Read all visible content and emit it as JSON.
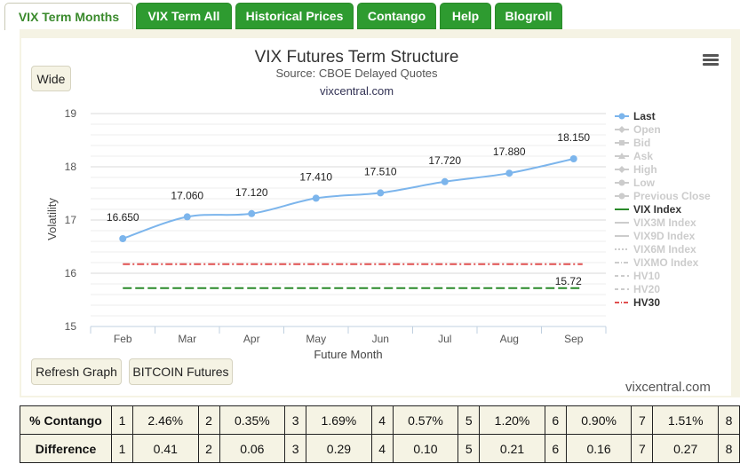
{
  "tabs": [
    {
      "label": "VIX Term Months",
      "active": true
    },
    {
      "label": "VIX Term All",
      "active": false
    },
    {
      "label": "Historical Prices",
      "active": false
    },
    {
      "label": "Contango",
      "active": false
    },
    {
      "label": "Help",
      "active": false
    },
    {
      "label": "Blogroll",
      "active": false
    }
  ],
  "buttons": {
    "wide": "Wide",
    "refresh": "Refresh Graph",
    "bitcoin": "BITCOIN Futures"
  },
  "chart_header": {
    "title": "VIX Futures Term Structure",
    "subtitle": "Source: CBOE Delayed Quotes",
    "site": "vixcentral.com"
  },
  "footer_brand": "vixcentral.com",
  "chart_data": {
    "type": "line",
    "categories": [
      "Feb",
      "Mar",
      "Apr",
      "May",
      "Jun",
      "Jul",
      "Aug",
      "Sep"
    ],
    "xlabel": "Future Month",
    "ylabel": "Volatility",
    "ylim": [
      15,
      19
    ],
    "yticks": [
      15,
      16,
      17,
      18,
      19
    ],
    "grid": true,
    "legend_position": "right",
    "series": [
      {
        "name": "Last",
        "values": [
          16.65,
          17.06,
          17.12,
          17.41,
          17.51,
          17.72,
          17.88,
          18.15
        ],
        "labels": [
          "16.650",
          "17.060",
          "17.120",
          "17.410",
          "17.510",
          "17.720",
          "17.880",
          "18.150"
        ],
        "color": "#7cb5ec"
      },
      {
        "name": "VIX Index",
        "value": 15.72,
        "label": "15.72",
        "color": "#2a8a2a"
      },
      {
        "name": "HV30",
        "value": 16.17,
        "color": "#e05050"
      }
    ],
    "legend": [
      {
        "name": "Last",
        "active": true,
        "style": "dot-line"
      },
      {
        "name": "Open",
        "active": false,
        "style": "diamond"
      },
      {
        "name": "Bid",
        "active": false,
        "style": "square"
      },
      {
        "name": "Ask",
        "active": false,
        "style": "triangle"
      },
      {
        "name": "High",
        "active": false,
        "style": "diamond"
      },
      {
        "name": "Low",
        "active": false,
        "style": "dot"
      },
      {
        "name": "Previous Close",
        "active": false,
        "style": "dot"
      },
      {
        "name": "VIX Index",
        "active": true,
        "style": "solid"
      },
      {
        "name": "VIX3M Index",
        "active": false,
        "style": "solid"
      },
      {
        "name": "VIX9D Index",
        "active": false,
        "style": "solid"
      },
      {
        "name": "VIX6M Index",
        "active": false,
        "style": "dotted"
      },
      {
        "name": "VIXMO Index",
        "active": false,
        "style": "dashdot"
      },
      {
        "name": "HV10",
        "active": false,
        "style": "dashed"
      },
      {
        "name": "HV20",
        "active": false,
        "style": "dashed"
      },
      {
        "name": "HV30",
        "active": true,
        "style": "dashdot"
      }
    ]
  },
  "table": {
    "rows": [
      {
        "label": "% Contango",
        "cells": [
          "1",
          "2.46%",
          "2",
          "0.35%",
          "3",
          "1.69%",
          "4",
          "0.57%",
          "5",
          "1.20%",
          "6",
          "0.90%",
          "7",
          "1.51%",
          "8"
        ]
      },
      {
        "label": "Difference",
        "cells": [
          "1",
          "0.41",
          "2",
          "0.06",
          "3",
          "0.29",
          "4",
          "0.10",
          "5",
          "0.21",
          "6",
          "0.16",
          "7",
          "0.27",
          "8"
        ]
      }
    ]
  }
}
